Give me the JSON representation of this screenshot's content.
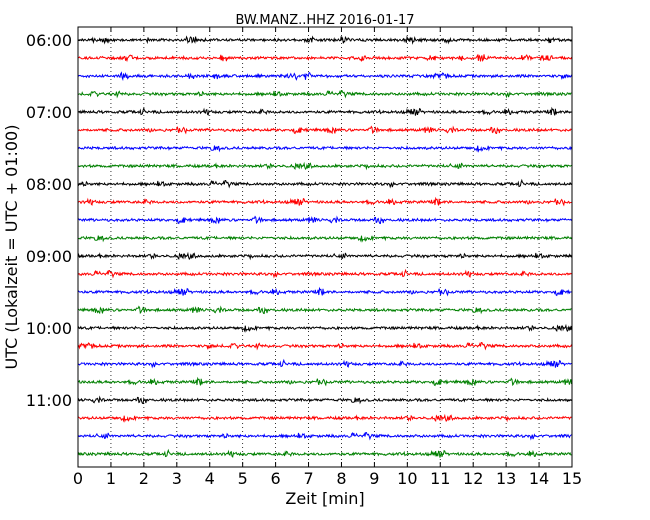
{
  "chart_data": {
    "type": "line",
    "title": "BW.MANZ..HHZ 2016-01-17",
    "xlabel": "Zeit  [min]",
    "ylabel": "UTC (Lokalzeit = UTC + 01:00)",
    "xlim": [
      0,
      15
    ],
    "x_ticks": [
      "0",
      "1",
      "2",
      "3",
      "4",
      "5",
      "6",
      "7",
      "8",
      "9",
      "10",
      "11",
      "12",
      "13",
      "14",
      "15"
    ],
    "y_tick_labels": [
      "06:00",
      "07:00",
      "08:00",
      "09:00",
      "10:00",
      "11:00"
    ],
    "grid": "vertical dotted",
    "trace_interval_minutes": 15,
    "traces": [
      {
        "start": "06:00",
        "color": "#000000"
      },
      {
        "start": "06:15",
        "color": "#ff0000"
      },
      {
        "start": "06:30",
        "color": "#0000ff"
      },
      {
        "start": "06:45",
        "color": "#008000"
      },
      {
        "start": "07:00",
        "color": "#000000"
      },
      {
        "start": "07:15",
        "color": "#ff0000"
      },
      {
        "start": "07:30",
        "color": "#0000ff"
      },
      {
        "start": "07:45",
        "color": "#008000"
      },
      {
        "start": "08:00",
        "color": "#000000"
      },
      {
        "start": "08:15",
        "color": "#ff0000"
      },
      {
        "start": "08:30",
        "color": "#0000ff"
      },
      {
        "start": "08:45",
        "color": "#008000"
      },
      {
        "start": "09:00",
        "color": "#000000"
      },
      {
        "start": "09:15",
        "color": "#ff0000"
      },
      {
        "start": "09:30",
        "color": "#0000ff"
      },
      {
        "start": "09:45",
        "color": "#008000"
      },
      {
        "start": "10:00",
        "color": "#000000"
      },
      {
        "start": "10:15",
        "color": "#ff0000"
      },
      {
        "start": "10:30",
        "color": "#0000ff"
      },
      {
        "start": "10:45",
        "color": "#008000"
      },
      {
        "start": "11:00",
        "color": "#000000"
      },
      {
        "start": "11:15",
        "color": "#ff0000"
      },
      {
        "start": "11:30",
        "color": "#0000ff"
      },
      {
        "start": "11:45",
        "color": "#008000"
      }
    ]
  }
}
